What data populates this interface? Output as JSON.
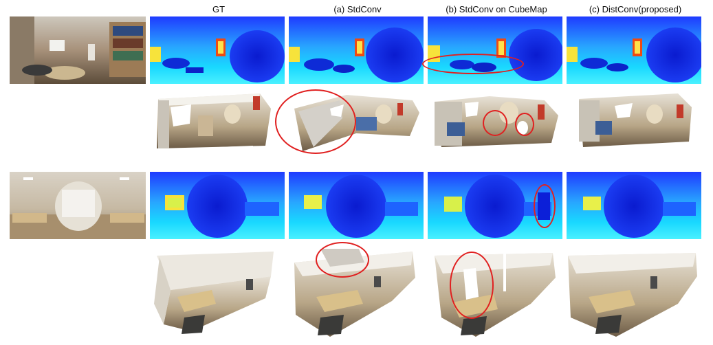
{
  "columns": {
    "gt": "GT",
    "stdconv": "(a) StdConv",
    "stdconv_cubemap": "(b) StdConv on CubeMap",
    "distconv": "(c) DistConv(proposed)"
  },
  "colors": {
    "depth_near": "#2a6dff",
    "depth_mid": "#19d3ff",
    "depth_far": "#0c1fd8",
    "hot": "#f04a12",
    "warm": "#f7e33b",
    "highlight": "#e02020"
  }
}
